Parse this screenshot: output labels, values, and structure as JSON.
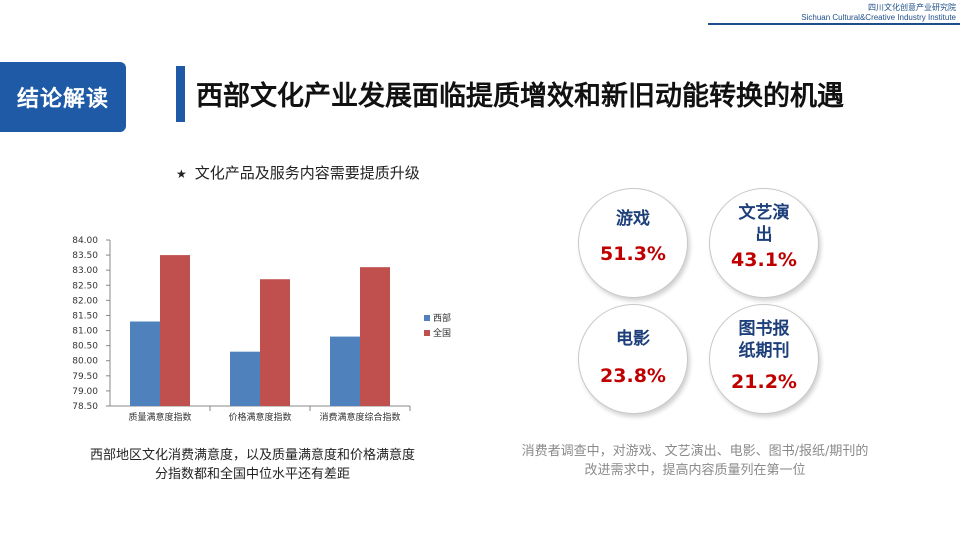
{
  "brand": {
    "cn": "四川文化创意产业研究院",
    "en": "Sichuan Cultural&Creative Industry Institute"
  },
  "section_badge": "结论解读",
  "page_title": "西部文化产业发展面临提质增效和新旧动能转换的机遇",
  "star_item": {
    "icon": "star-icon",
    "text": "文化产品及服务内容需要提质升级"
  },
  "chart_caption": [
    "西部地区文化消费满意度，以及质量满意度和价格满意度",
    "分指数都和全国中位水平还有差距"
  ],
  "stats": [
    {
      "name_lines": [
        "游戏"
      ],
      "value": "51.3%"
    },
    {
      "name_lines": [
        "文艺演",
        "出"
      ],
      "value": "43.1%"
    },
    {
      "name_lines": [
        "电影"
      ],
      "value": "23.8%"
    },
    {
      "name_lines": [
        "图书报",
        "纸期刊"
      ],
      "value": "21.2%"
    }
  ],
  "right_caption": [
    "消费者调查中，对游戏、文艺演出、电影、图书/报纸/期刊的",
    "改进需求中，提高内容质量列在第一位"
  ],
  "colors": {
    "accent": "#1f5aa6",
    "series_west": "#4f81bd",
    "series_national": "#c0504d",
    "stat_value": "#c00000"
  },
  "chart_data": {
    "type": "bar",
    "categories": [
      "质量满意度指数",
      "价格满意度指数",
      "消费满意度综合指数"
    ],
    "series": [
      {
        "name": "西部",
        "values": [
          81.3,
          80.3,
          80.8
        ]
      },
      {
        "name": "全国",
        "values": [
          83.5,
          82.7,
          83.1
        ]
      }
    ],
    "ylim": [
      78.5,
      84.0
    ],
    "yticks": [
      "78.50",
      "79.00",
      "79.50",
      "80.00",
      "80.50",
      "81.00",
      "81.50",
      "82.00",
      "82.50",
      "83.00",
      "83.50",
      "84.00"
    ],
    "legend_position": "right",
    "title": "",
    "xlabel": "",
    "ylabel": ""
  }
}
